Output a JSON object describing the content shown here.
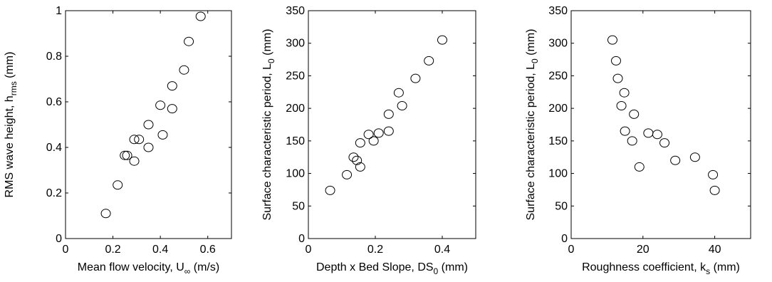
{
  "chart_data": [
    {
      "type": "scatter",
      "xlabel": {
        "main": "Mean flow velocity, U",
        "sub": "∞",
        "tail": " (m/s)"
      },
      "ylabel": {
        "main": "RMS wave height, h",
        "sub": "rms",
        "tail": " (mm)"
      },
      "xlim": [
        0,
        0.7
      ],
      "ylim": [
        0,
        1
      ],
      "xticks": [
        0,
        0.2,
        0.4,
        0.6
      ],
      "yticks": [
        0,
        0.2,
        0.4,
        0.6,
        0.8,
        1
      ],
      "xtick_labels": [
        "0",
        "0.2",
        "0.4",
        "0.6"
      ],
      "ytick_labels": [
        "0",
        "0.2",
        "0.4",
        "0.6",
        "0.8",
        "1"
      ],
      "points": [
        {
          "x": 0.17,
          "y": 0.11
        },
        {
          "x": 0.22,
          "y": 0.235
        },
        {
          "x": 0.25,
          "y": 0.365
        },
        {
          "x": 0.26,
          "y": 0.365
        },
        {
          "x": 0.29,
          "y": 0.34
        },
        {
          "x": 0.29,
          "y": 0.435
        },
        {
          "x": 0.31,
          "y": 0.435
        },
        {
          "x": 0.35,
          "y": 0.5
        },
        {
          "x": 0.35,
          "y": 0.4
        },
        {
          "x": 0.4,
          "y": 0.585
        },
        {
          "x": 0.41,
          "y": 0.455
        },
        {
          "x": 0.45,
          "y": 0.57
        },
        {
          "x": 0.45,
          "y": 0.67
        },
        {
          "x": 0.5,
          "y": 0.74
        },
        {
          "x": 0.52,
          "y": 0.865
        },
        {
          "x": 0.57,
          "y": 0.975
        }
      ]
    },
    {
      "type": "scatter",
      "xlabel": {
        "main": "Depth x Bed Slope, DS",
        "sub": "0",
        "tail": " (mm)"
      },
      "ylabel": {
        "main": "Surface characteristic period, L",
        "sub": "0",
        "tail": " (mm)"
      },
      "xlim": [
        0,
        0.5
      ],
      "ylim": [
        0,
        350
      ],
      "xticks": [
        0,
        0.2,
        0.4
      ],
      "yticks": [
        0,
        50,
        100,
        150,
        200,
        250,
        300,
        350
      ],
      "xtick_labels": [
        "0",
        "0.2",
        "0.4"
      ],
      "ytick_labels": [
        "0",
        "50",
        "100",
        "150",
        "200",
        "250",
        "300",
        "350"
      ],
      "points": [
        {
          "x": 0.065,
          "y": 74
        },
        {
          "x": 0.115,
          "y": 98
        },
        {
          "x": 0.135,
          "y": 125
        },
        {
          "x": 0.145,
          "y": 120
        },
        {
          "x": 0.155,
          "y": 110
        },
        {
          "x": 0.155,
          "y": 147
        },
        {
          "x": 0.18,
          "y": 160
        },
        {
          "x": 0.195,
          "y": 150
        },
        {
          "x": 0.21,
          "y": 162
        },
        {
          "x": 0.24,
          "y": 165
        },
        {
          "x": 0.24,
          "y": 191
        },
        {
          "x": 0.27,
          "y": 224
        },
        {
          "x": 0.28,
          "y": 204
        },
        {
          "x": 0.32,
          "y": 246
        },
        {
          "x": 0.36,
          "y": 273
        },
        {
          "x": 0.4,
          "y": 305
        }
      ]
    },
    {
      "type": "scatter",
      "xlabel": {
        "main": "Roughness coefficient, k",
        "sub": "s",
        "tail": " (mm)"
      },
      "ylabel": {
        "main": "Surface characteristic period, L",
        "sub": "0",
        "tail": " (mm)"
      },
      "xlim": [
        0,
        50
      ],
      "ylim": [
        0,
        350
      ],
      "xticks": [
        0,
        20,
        40
      ],
      "yticks": [
        0,
        50,
        100,
        150,
        200,
        250,
        300,
        350
      ],
      "xtick_labels": [
        "0",
        "20",
        "40"
      ],
      "ytick_labels": [
        "0",
        "50",
        "100",
        "150",
        "200",
        "250",
        "300",
        "350"
      ],
      "points": [
        {
          "x": 11.5,
          "y": 305
        },
        {
          "x": 12.5,
          "y": 273
        },
        {
          "x": 13.0,
          "y": 246
        },
        {
          "x": 14.0,
          "y": 204
        },
        {
          "x": 14.8,
          "y": 224
        },
        {
          "x": 15.0,
          "y": 165
        },
        {
          "x": 17.5,
          "y": 191
        },
        {
          "x": 17.0,
          "y": 150
        },
        {
          "x": 19.0,
          "y": 110
        },
        {
          "x": 21.5,
          "y": 162
        },
        {
          "x": 24.0,
          "y": 160
        },
        {
          "x": 26.0,
          "y": 147
        },
        {
          "x": 29.0,
          "y": 120
        },
        {
          "x": 34.5,
          "y": 125
        },
        {
          "x": 39.5,
          "y": 98
        },
        {
          "x": 40.0,
          "y": 74
        }
      ]
    }
  ]
}
